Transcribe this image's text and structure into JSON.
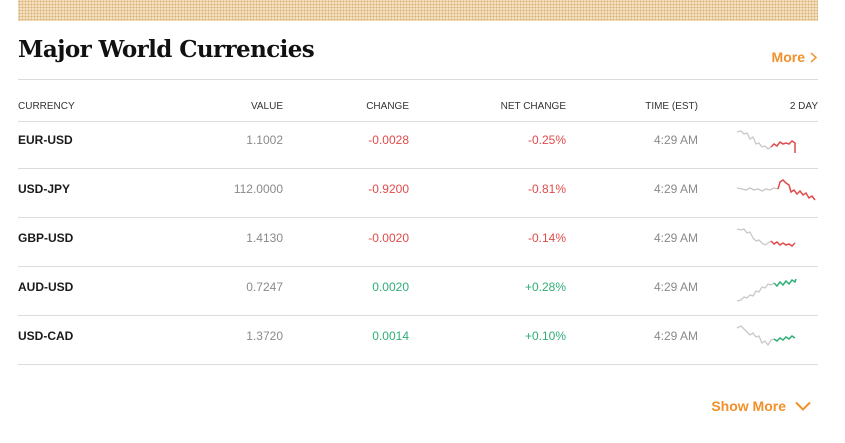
{
  "section": {
    "title": "Major World Currencies",
    "more_label": "More",
    "show_more_label": "Show More"
  },
  "columns": {
    "currency": "CURRENCY",
    "value": "VALUE",
    "change": "CHANGE",
    "net_change": "NET CHANGE",
    "time": "TIME (EST)",
    "chart": "2 DAY"
  },
  "colors": {
    "accent": "#f0912b",
    "negative": "#e04b4b",
    "positive": "#2fae77",
    "history": "#c8c8c8"
  },
  "rows": [
    {
      "pair": "EUR-USD",
      "value": "1.1002",
      "change": "-0.0028",
      "net_change": "-0.25%",
      "time": "4:29 AM",
      "direction": "negative"
    },
    {
      "pair": "USD-JPY",
      "value": "112.0000",
      "change": "-0.9200",
      "net_change": "-0.81%",
      "time": "4:29 AM",
      "direction": "negative"
    },
    {
      "pair": "GBP-USD",
      "value": "1.4130",
      "change": "-0.0020",
      "net_change": "-0.14%",
      "time": "4:29 AM",
      "direction": "negative"
    },
    {
      "pair": "AUD-USD",
      "value": "0.7247",
      "change": "0.0020",
      "net_change": "+0.28%",
      "time": "4:29 AM",
      "direction": "positive"
    },
    {
      "pair": "USD-CAD",
      "value": "1.3720",
      "change": "0.0014",
      "net_change": "+0.10%",
      "time": "4:29 AM",
      "direction": "positive"
    }
  ]
}
